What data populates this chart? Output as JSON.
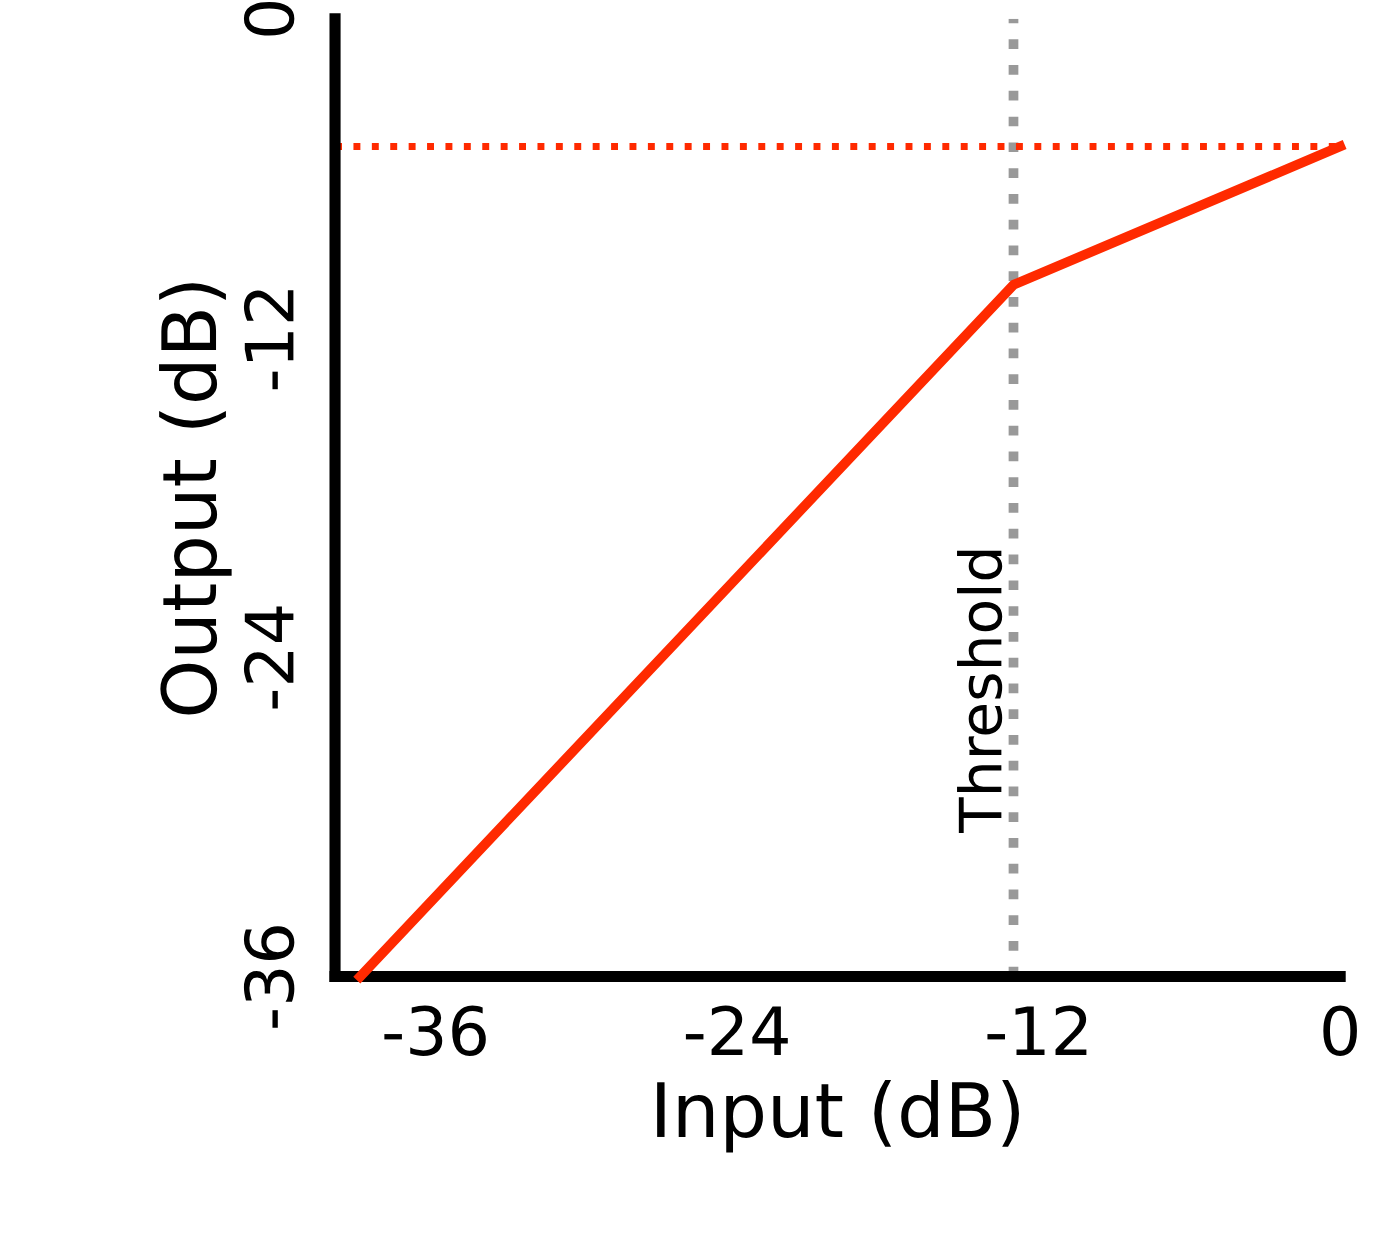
{
  "chart_data": {
    "type": "line",
    "xlabel": "Input (dB)",
    "ylabel": "Output (dB)",
    "x": [
      -39,
      -13,
      0
    ],
    "series": [
      {
        "color": "#ff2a00",
        "values": [
          -36,
          -10,
          -4.8
        ]
      }
    ],
    "xlim": [
      -40,
      0
    ],
    "ylim": [
      -36,
      0
    ],
    "xticks": [
      -36,
      -24,
      -12,
      0
    ],
    "yticks": [
      -36,
      -24,
      -12,
      0
    ],
    "ref_lines": [
      {
        "axis": "x",
        "value": -13,
        "label": "Threshold",
        "color": "#999999",
        "line_style": "dotted"
      },
      {
        "axis": "y",
        "value": -4.8,
        "color": "#ff2a00",
        "line_style": "dotted"
      }
    ],
    "grid": false,
    "legend": false,
    "marker": "none",
    "line_style": "solid"
  }
}
